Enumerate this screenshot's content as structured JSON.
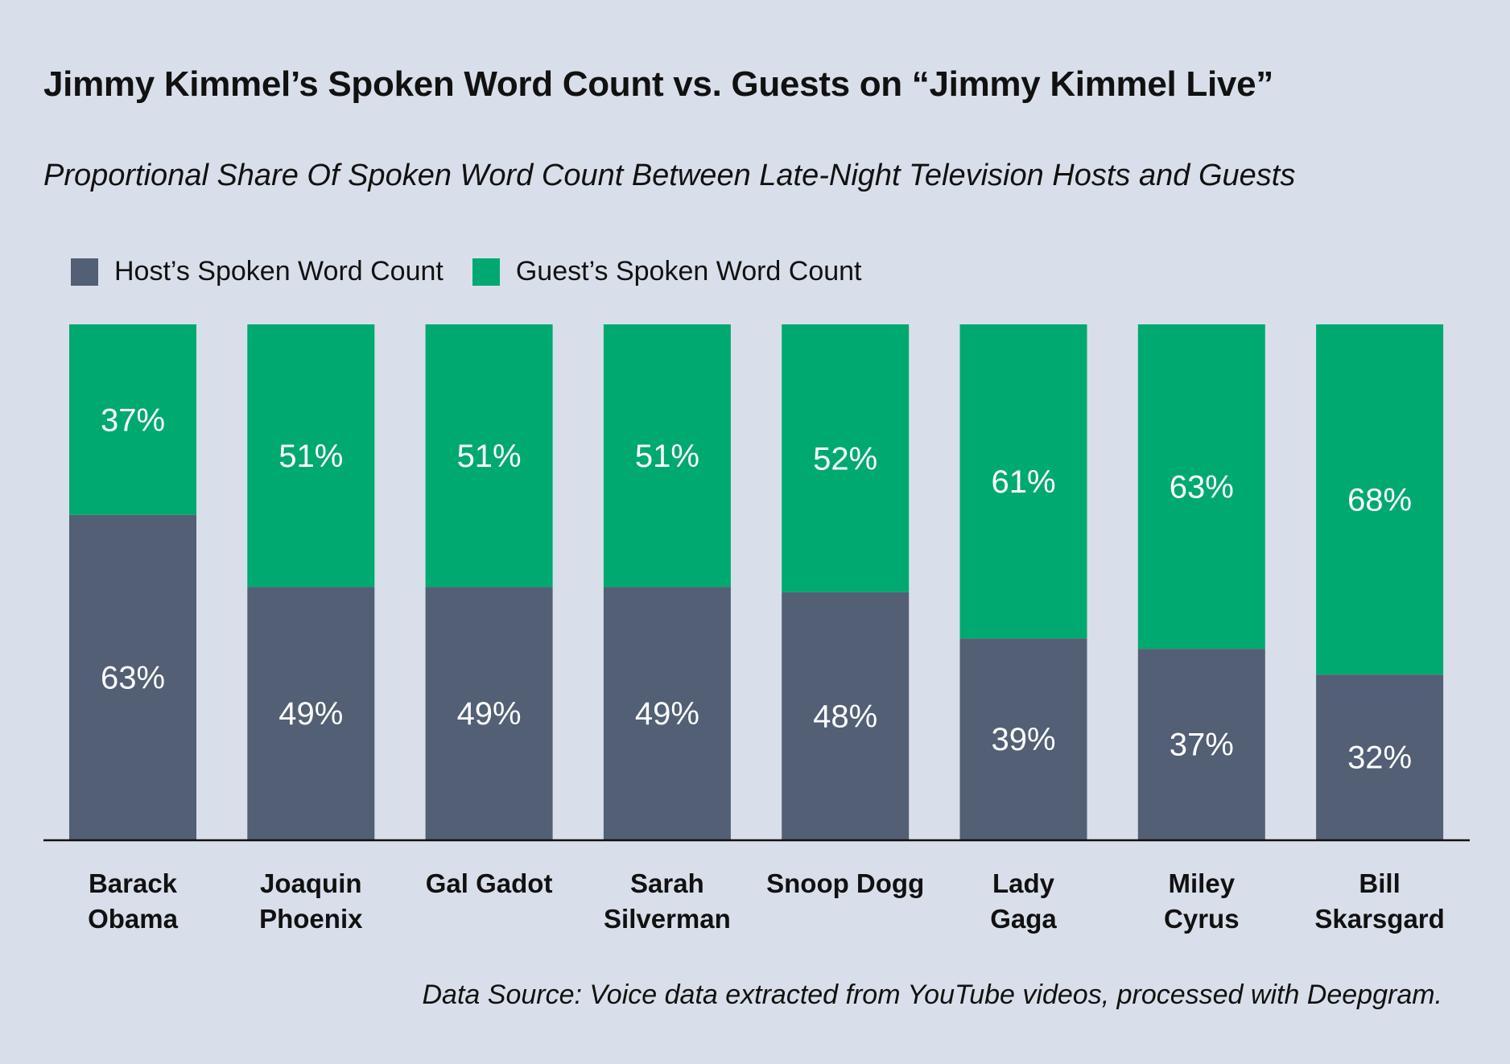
{
  "title": "Jimmy Kimmel’s Spoken Word Count vs. Guests on “Jimmy Kimmel Live”",
  "subtitle": "Proportional Share Of Spoken Word Count Between Late-Night Television Hosts and Guests",
  "source": "Data Source: Voice data extracted from YouTube videos, processed with Deepgram.",
  "colors": {
    "background": "#d9dfea",
    "host": "#525f74",
    "guest": "#00a970",
    "axis": "#111111"
  },
  "chart_data": {
    "type": "bar",
    "stacked": true,
    "percent": true,
    "categories": [
      [
        "Barack",
        "Obama"
      ],
      [
        "Joaquin",
        "Phoenix"
      ],
      [
        "Gal Gadot"
      ],
      [
        "Sarah",
        "Silverman"
      ],
      [
        "Snoop Dogg"
      ],
      [
        "Lady",
        "Gaga"
      ],
      [
        "Miley",
        "Cyrus"
      ],
      [
        "Bill",
        "Skarsgard"
      ]
    ],
    "series": [
      {
        "name": "Host’s Spoken Word Count",
        "values": [
          63,
          49,
          49,
          49,
          48,
          39,
          37,
          32
        ],
        "labels": [
          "63%",
          "49%",
          "49%",
          "49%",
          "48%",
          "39%",
          "37%",
          "32%"
        ]
      },
      {
        "name": "Guest’s Spoken Word Count",
        "values": [
          37,
          51,
          51,
          51,
          52,
          61,
          63,
          68
        ],
        "labels": [
          "37%",
          "51%",
          "51%",
          "51%",
          "52%",
          "61%",
          "63%",
          "68%"
        ]
      }
    ],
    "ylim": [
      0,
      100
    ],
    "legend_position": "top-left",
    "grid": false
  }
}
